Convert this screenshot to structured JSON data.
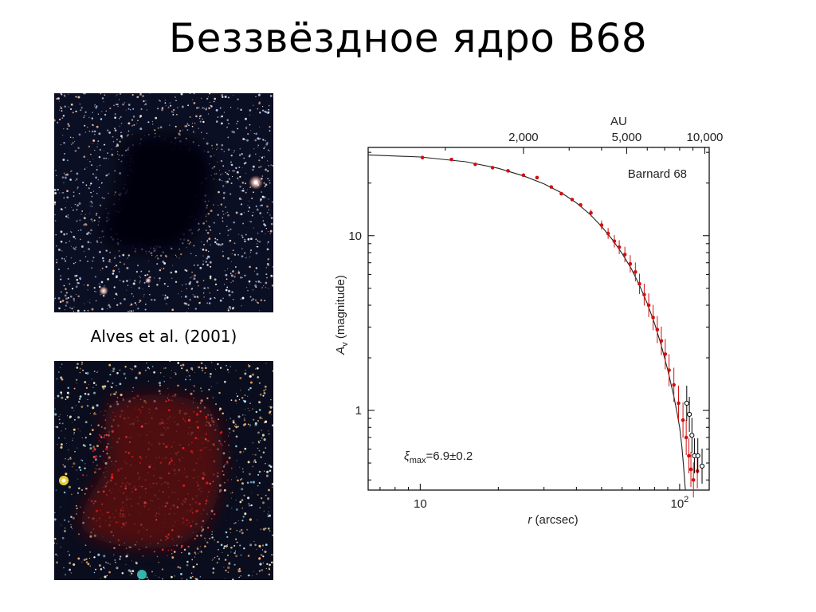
{
  "slide": {
    "title": "Беззвёздное ядро B68",
    "caption": "Alves et al. (2001)"
  },
  "images": {
    "optical": {
      "description_icon": "dark-globule-optical-image"
    },
    "infrared": {
      "description_icon": "dark-globule-infrared-image"
    }
  },
  "colors": {
    "data_points": "#d01010",
    "open_points": "#000000",
    "model_curve": "#222222",
    "axis": "#000000"
  },
  "chart_data": {
    "type": "scatter",
    "annotation_object": "Barnard 68",
    "annotation_fit": "ξmax=6.9±0.2",
    "xlabel_var": "r",
    "xlabel_unit": "(arcsec)",
    "ylabel_var": "A",
    "ylabel_sub": "V",
    "ylabel_unit": "(magnitude)",
    "top_axis_label": "AU",
    "x_scale": "log",
    "y_scale": "log",
    "xlim": [
      6.3,
      130
    ],
    "ylim": [
      0.35,
      32
    ],
    "x_ticks": [
      {
        "value": 10,
        "label": "10"
      },
      {
        "value": 100,
        "label": "10",
        "sup": "2"
      }
    ],
    "y_ticks": [
      {
        "value": 1,
        "label": "1"
      },
      {
        "value": 10,
        "label": "10"
      }
    ],
    "top_ticks": [
      {
        "au": 2000,
        "label": "2,000"
      },
      {
        "au": 5000,
        "label": "5,000"
      },
      {
        "au": 10000,
        "label": "10,000"
      }
    ],
    "au_per_arcsec": 80,
    "series": [
      {
        "style": "filled",
        "points": [
          [
            10.2,
            28.0
          ],
          [
            13.2,
            27.3
          ],
          [
            16.3,
            25.6
          ],
          [
            19.0,
            24.5
          ],
          [
            21.8,
            23.5
          ],
          [
            25.0,
            22.2
          ],
          [
            28.2,
            21.5
          ],
          [
            32.0,
            19.0
          ],
          [
            35.0,
            17.4
          ],
          [
            38.5,
            16.1
          ],
          [
            41.5,
            15.0
          ],
          [
            45.5,
            13.5
          ],
          [
            50.0,
            11.5
          ],
          [
            53.0,
            10.3
          ],
          [
            56.0,
            9.3
          ],
          [
            58.5,
            8.6
          ],
          [
            61.5,
            7.8
          ],
          [
            64.5,
            6.9
          ],
          [
            67.5,
            6.2
          ],
          [
            70.0,
            5.3
          ],
          [
            73.0,
            4.6
          ],
          [
            76.0,
            4.0
          ],
          [
            79.0,
            3.4
          ],
          [
            82.0,
            2.9
          ],
          [
            85.0,
            2.5
          ],
          [
            88.0,
            2.1
          ],
          [
            91.0,
            1.7
          ],
          [
            95.0,
            1.4
          ],
          [
            99.0,
            1.1
          ],
          [
            103.0,
            0.88
          ],
          [
            106.0,
            0.7
          ],
          [
            108.5,
            0.55
          ],
          [
            110.5,
            0.46
          ],
          [
            113.0,
            0.4
          ],
          [
            117.0,
            0.45
          ]
        ]
      },
      {
        "style": "open",
        "points": [
          [
            106.5,
            1.1
          ],
          [
            109.0,
            0.95
          ],
          [
            111.5,
            0.72
          ],
          [
            114.0,
            0.55
          ],
          [
            117.5,
            0.55
          ],
          [
            122.0,
            0.48
          ]
        ]
      }
    ],
    "model_curve": [
      [
        6.3,
        29.0
      ],
      [
        10,
        28.2
      ],
      [
        15,
        26.5
      ],
      [
        20,
        24.3
      ],
      [
        25,
        22.0
      ],
      [
        30,
        19.8
      ],
      [
        35,
        17.6
      ],
      [
        40,
        15.4
      ],
      [
        45,
        13.3
      ],
      [
        50,
        11.3
      ],
      [
        55,
        9.5
      ],
      [
        60,
        7.9
      ],
      [
        65,
        6.5
      ],
      [
        70,
        5.2
      ],
      [
        75,
        4.1
      ],
      [
        80,
        3.15
      ],
      [
        85,
        2.35
      ],
      [
        90,
        1.7
      ],
      [
        95,
        1.2
      ],
      [
        98,
        0.95
      ],
      [
        100,
        0.8
      ],
      [
        102,
        0.62
      ],
      [
        103.5,
        0.48
      ],
      [
        104.5,
        0.4
      ],
      [
        105.2,
        0.35
      ]
    ]
  }
}
